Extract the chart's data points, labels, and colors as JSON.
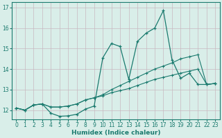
{
  "title": "",
  "xlabel": "Humidex (Indice chaleur)",
  "ylabel": "",
  "bg_color": "#d9eee9",
  "grid_color": "#c8ddd9",
  "line_color": "#1a7a6e",
  "x_ticks": [
    0,
    1,
    2,
    3,
    4,
    5,
    6,
    7,
    8,
    9,
    10,
    11,
    12,
    13,
    14,
    15,
    16,
    17,
    18,
    19,
    20,
    21,
    22,
    23
  ],
  "y_ticks": [
    12,
    13,
    14,
    15,
    16,
    17
  ],
  "ylim": [
    11.55,
    17.25
  ],
  "xlim": [
    -0.5,
    23.5
  ],
  "series": {
    "line1": [
      12.1,
      12.0,
      12.25,
      12.3,
      11.85,
      11.7,
      11.72,
      11.8,
      12.05,
      12.2,
      14.55,
      15.25,
      15.1,
      13.5,
      15.35,
      15.75,
      16.0,
      16.85,
      14.45,
      13.55,
      13.8,
      13.25,
      13.25,
      13.3
    ],
    "line2": [
      12.1,
      12.0,
      12.25,
      12.3,
      12.15,
      12.15,
      12.2,
      12.3,
      12.5,
      12.6,
      12.7,
      12.85,
      12.95,
      13.05,
      13.2,
      13.35,
      13.5,
      13.6,
      13.7,
      13.8,
      13.9,
      14.0,
      13.25,
      13.3
    ],
    "line3": [
      12.1,
      12.0,
      12.25,
      12.3,
      12.15,
      12.15,
      12.2,
      12.3,
      12.5,
      12.6,
      12.75,
      13.0,
      13.2,
      13.4,
      13.6,
      13.8,
      14.0,
      14.15,
      14.3,
      14.5,
      14.6,
      14.7,
      13.25,
      13.3
    ]
  }
}
